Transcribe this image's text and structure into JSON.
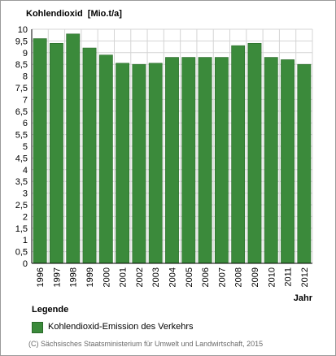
{
  "chart_data": {
    "type": "bar",
    "title": "Kohlendioxid  [Mio.t/a]",
    "xlabel": "Jahr",
    "ylabel": "",
    "categories": [
      "1996",
      "1997",
      "1998",
      "1999",
      "2000",
      "2001",
      "2002",
      "2003",
      "2004",
      "2005",
      "2006",
      "2007",
      "2008",
      "2009",
      "2010",
      "2011",
      "2012"
    ],
    "series": [
      {
        "name": "Kohlendioxid-Emission des Verkehrs",
        "color": "#3b8a3b",
        "values": [
          9.6,
          9.4,
          9.8,
          9.2,
          8.9,
          8.55,
          8.5,
          8.55,
          8.8,
          8.8,
          8.8,
          8.8,
          9.3,
          9.4,
          8.8,
          8.7,
          8.5
        ]
      }
    ],
    "ylim": [
      0,
      10
    ],
    "yticks": [
      "0",
      "0,5",
      "1",
      "1,5",
      "2",
      "2,5",
      "3",
      "3,5",
      "4",
      "4,5",
      "5",
      "5,5",
      "6",
      "6,5",
      "7",
      "7,5",
      "8",
      "8,5",
      "9",
      "9,5",
      "10"
    ],
    "grid": true,
    "legend_position": "bottom-left"
  },
  "legend": {
    "title": "Legende"
  },
  "footer": {
    "copyright": "(C) Sächsisches Staatsministerium für Umwelt und Landwirtschaft, 2015"
  }
}
